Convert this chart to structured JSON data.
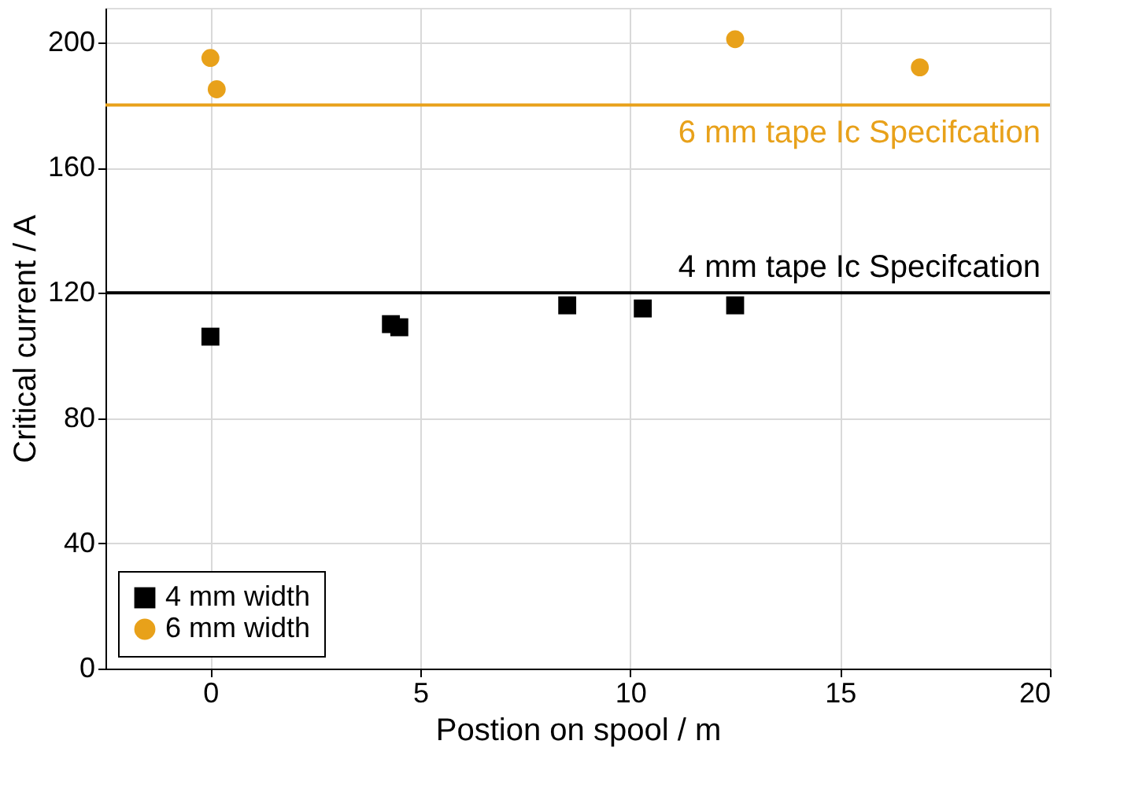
{
  "chart_data": {
    "type": "scatter",
    "xlabel": "Postion on spool / m",
    "ylabel": "Critical current / A",
    "xlim": [
      -2.5,
      20
    ],
    "ylim": [
      0,
      211
    ],
    "xticks": [
      0,
      5,
      10,
      15,
      20
    ],
    "yticks": [
      0,
      40,
      80,
      120,
      160,
      200
    ],
    "grid": true,
    "legend": "bottom left",
    "series": [
      {
        "name": "4 mm width",
        "color": "#000000",
        "marker": "square",
        "x": [
          0,
          4.3,
          4.5,
          8.5,
          10.3,
          12.5
        ],
        "values": [
          106,
          110,
          109,
          116,
          115,
          116
        ]
      },
      {
        "name": "6 mm width",
        "color": "#e8a11a",
        "marker": "circle",
        "x": [
          0,
          0.15,
          12.5,
          16.9
        ],
        "values": [
          195,
          185,
          201,
          192
        ]
      }
    ],
    "ref_lines": [
      {
        "axis": "y",
        "value": 180,
        "label": "6 mm tape Ic Specifcation",
        "color": "#e8a11a"
      },
      {
        "axis": "y",
        "value": 120,
        "label": "4 mm tape Ic Specifcation",
        "color": "#000000"
      }
    ]
  }
}
